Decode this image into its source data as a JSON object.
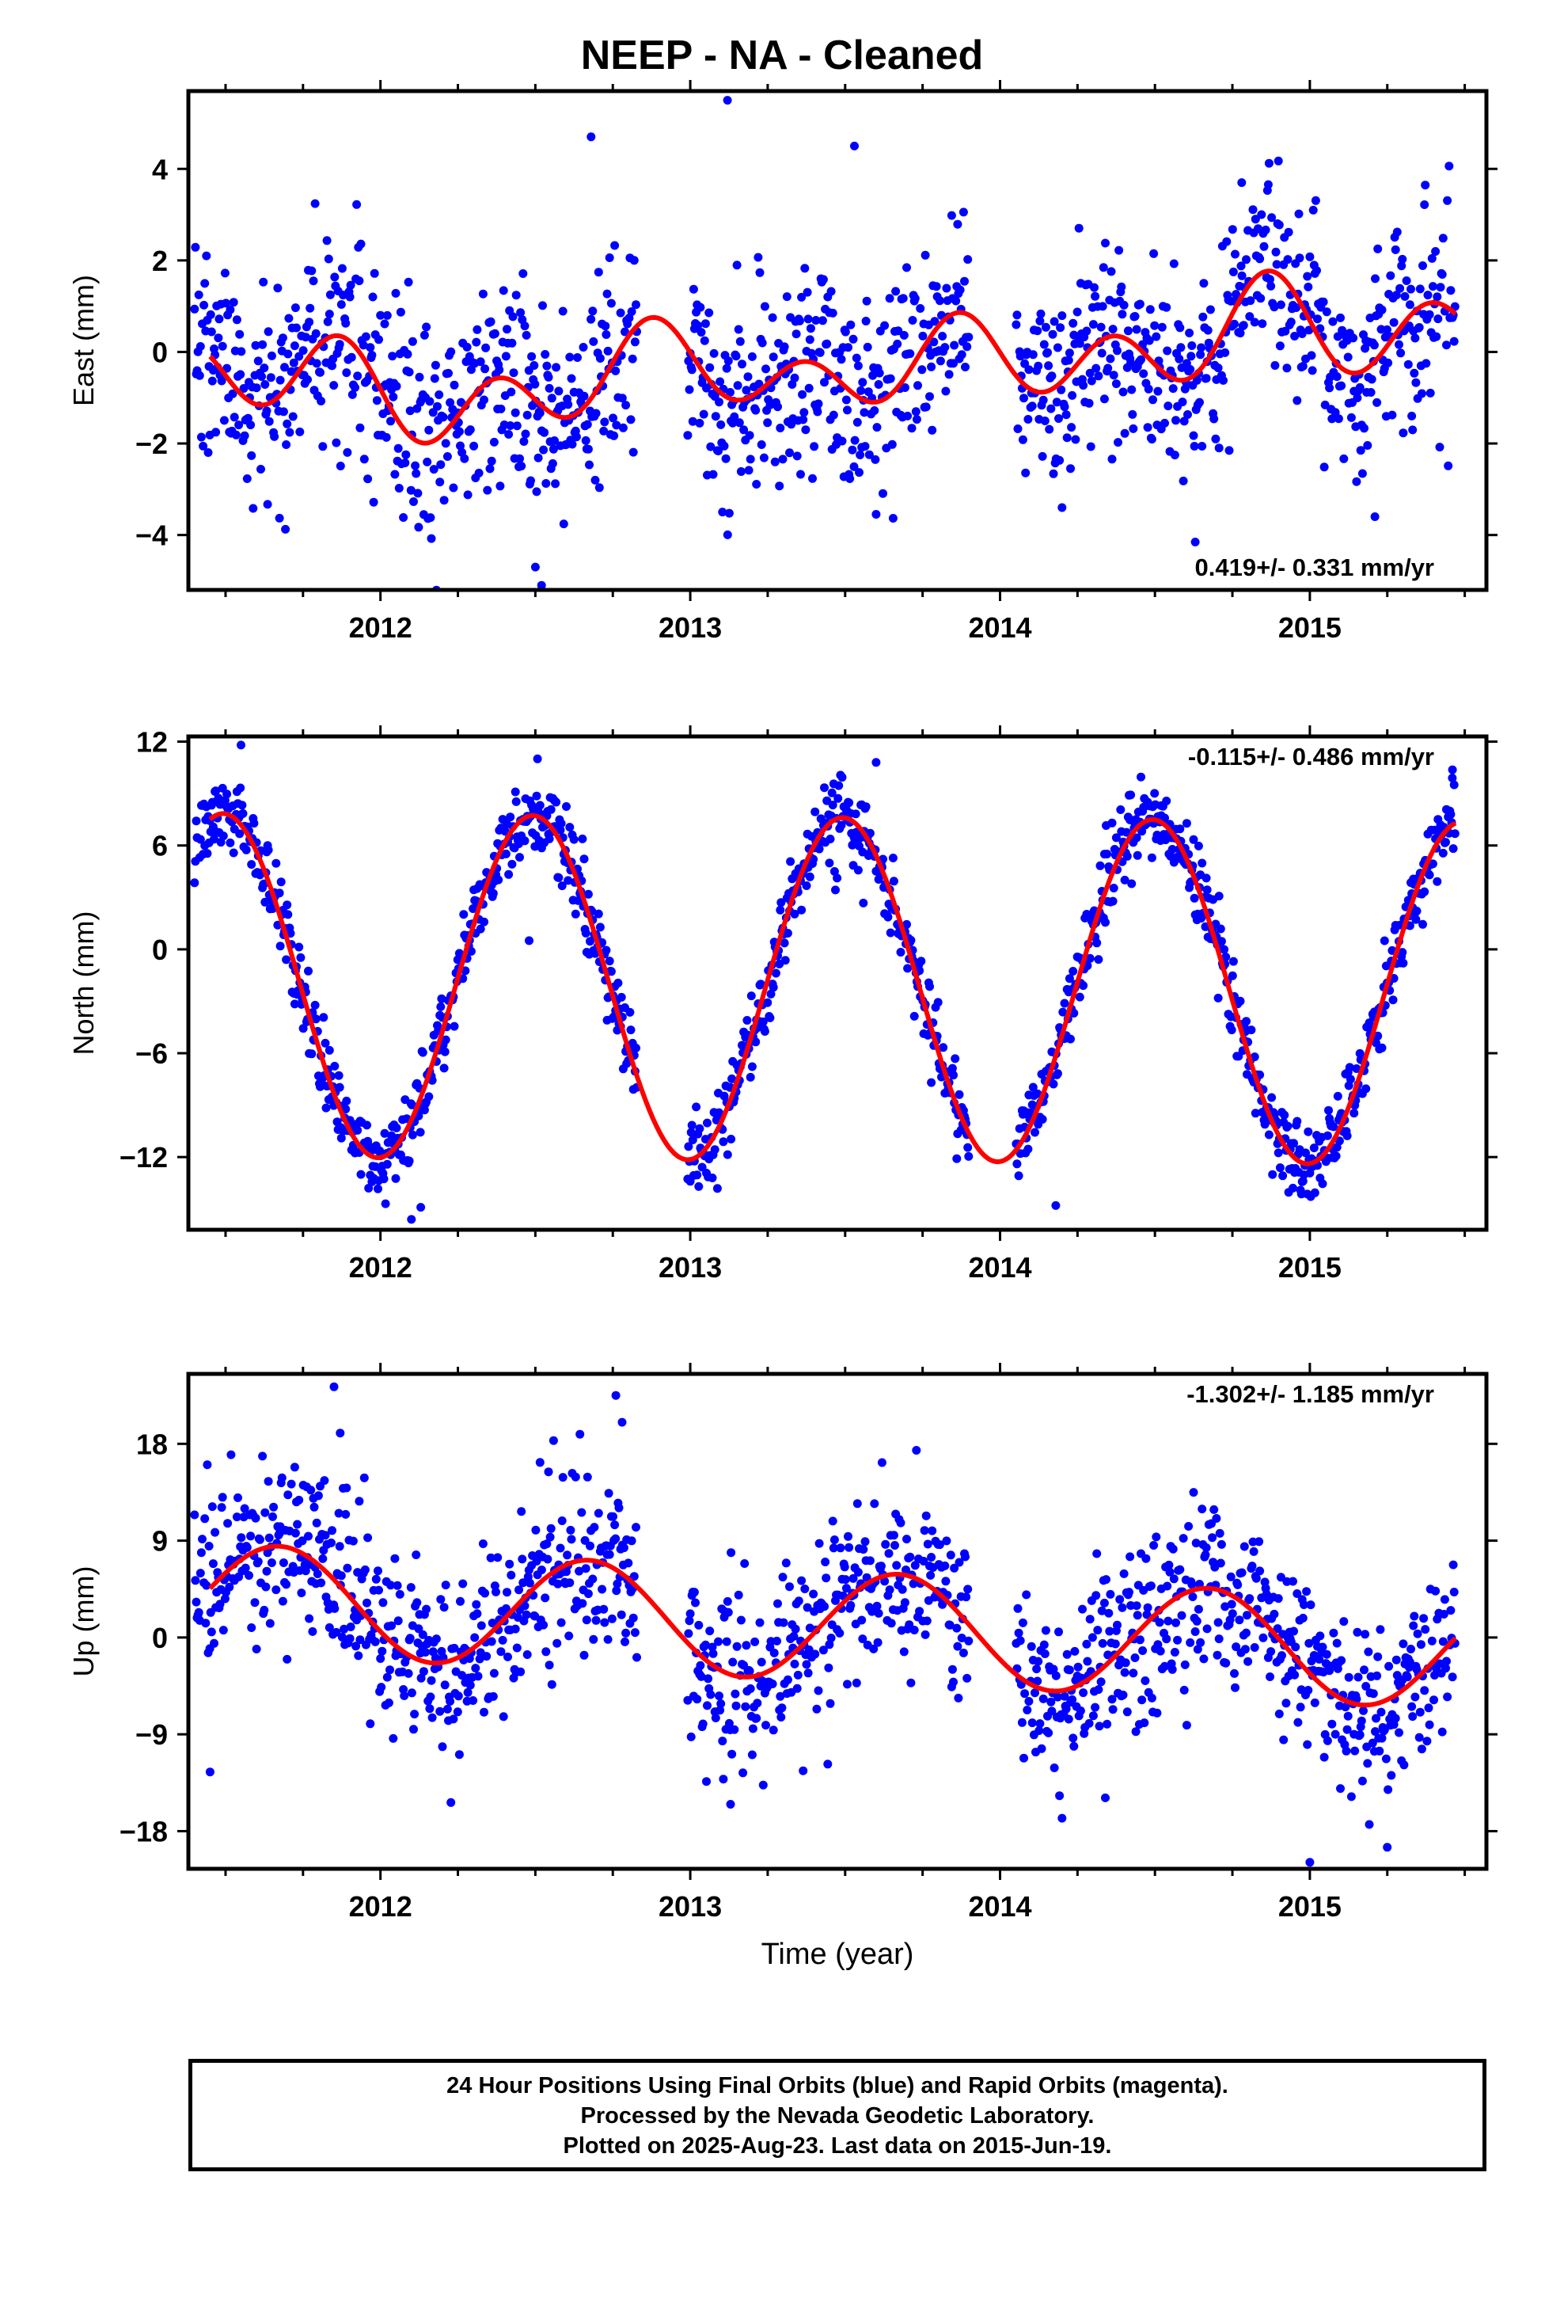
{
  "title": "NEEP  - NA - Cleaned",
  "footer": {
    "line1": "24 Hour Positions Using Final Orbits (blue) and Rapid Orbits (magenta).",
    "line2": "Processed by the Nevada Geodetic Laboratory.",
    "line3": "Plotted on 2025-Aug-23. Last data on 2015-Jun-19."
  },
  "colors": {
    "data_points": "#0000ff",
    "fit_curve": "#ff0000",
    "axes": "#000000"
  },
  "chart_data": [
    {
      "type": "scatter",
      "ylabel": "East (mm)",
      "xlabel": "",
      "xlim": [
        2011.38,
        2015.57
      ],
      "ylim": [
        -5.2,
        5.7
      ],
      "xticks": [
        2012,
        2013,
        2014,
        2015
      ],
      "xtick_labels": [
        "2012",
        "2013",
        "2014",
        "2015"
      ],
      "yticks": [
        -4,
        -2,
        0,
        2,
        4
      ],
      "ytick_labels": [
        "−4",
        "−2",
        "0",
        "2",
        "4"
      ],
      "rate_label": "0.419+/- 0.331 mm/yr",
      "rate_position": "bottom-right",
      "gaps": [
        [
          2012.83,
          2012.99
        ],
        [
          2013.9,
          2014.05
        ]
      ],
      "model": {
        "trend": 0.419,
        "t0": 2013.5,
        "offset": 0.0,
        "annual": [
          -0.1,
          0.0
        ],
        "semiannual": [
          -0.05,
          -0.8
        ],
        "bumps": [
          [
            2011.85,
            0.5,
            0.45
          ],
          [
            2012.3,
            0.3,
            -1.2
          ],
          [
            2013.1,
            0.3,
            0.6
          ],
          [
            2013.35,
            0.25,
            -1.3
          ],
          [
            2014.4,
            0.25,
            -0.9
          ],
          [
            2014.85,
            0.2,
            0.5
          ],
          [
            2015.3,
            0.2,
            -0.7
          ]
        ]
      },
      "noise_sd": 1.15,
      "outliers": [
        [
          2013.12,
          5.5
        ],
        [
          2012.68,
          4.7
        ],
        [
          2012.52,
          -5.1
        ],
        [
          2012.5,
          -4.7
        ],
        [
          2013.53,
          4.5
        ],
        [
          2014.2,
          -3.4
        ],
        [
          2014.78,
          3.7
        ],
        [
          2015.21,
          -3.6
        ]
      ]
    },
    {
      "type": "scatter",
      "ylabel": "North (mm)",
      "xlabel": "",
      "xlim": [
        2011.38,
        2015.57
      ],
      "ylim": [
        -16.2,
        12.3
      ],
      "xticks": [
        2012,
        2013,
        2014,
        2015
      ],
      "xtick_labels": [
        "2012",
        "2013",
        "2014",
        "2015"
      ],
      "yticks": [
        -12,
        -6,
        0,
        6,
        12
      ],
      "ytick_labels": [
        "−12",
        "−6",
        "0",
        "6",
        "12"
      ],
      "rate_label": "-0.115+/- 0.486 mm/yr",
      "rate_position": "top-right",
      "gaps": [
        [
          2012.83,
          2012.99
        ],
        [
          2013.9,
          2014.05
        ]
      ],
      "model": {
        "trend": -0.115,
        "t0": 2013.5,
        "offset": -2.3,
        "annual": [
          -9.9,
          0.5
        ],
        "semiannual": [
          0.0,
          0.0
        ],
        "bumps": []
      },
      "noise_sd": 1.2,
      "outliers": [
        [
          2011.55,
          11.8
        ],
        [
          2012.1,
          -15.6
        ],
        [
          2012.13,
          -14.9
        ],
        [
          2012.48,
          0.5
        ],
        [
          2013.6,
          10.8
        ],
        [
          2014.18,
          -14.8
        ],
        [
          2014.52,
          8.3
        ],
        [
          2015.46,
          9.9
        ]
      ]
    },
    {
      "type": "scatter",
      "ylabel": "Up (mm)",
      "xlabel": "Time (year)",
      "xlim": [
        2011.38,
        2015.57
      ],
      "ylim": [
        -21.5,
        24.5
      ],
      "xticks": [
        2012,
        2013,
        2014,
        2015
      ],
      "xtick_labels": [
        "2012",
        "2013",
        "2014",
        "2015"
      ],
      "yticks": [
        -18,
        -9,
        0,
        9,
        18
      ],
      "ytick_labels": [
        "−18",
        "−9",
        "0",
        "9",
        "18"
      ],
      "rate_label": "-1.302+/- 1.185 mm/yr",
      "rate_position": "top-right",
      "gaps": [
        [
          2012.83,
          2012.99
        ],
        [
          2013.9,
          2014.05
        ]
      ],
      "model": {
        "trend": -1.302,
        "t0": 2013.5,
        "offset": 1.0,
        "annual": [
          -2.4,
          -4.5
        ],
        "semiannual": [
          0.0,
          0.0
        ],
        "bumps": []
      },
      "noise_sd": 4.2,
      "outliers": [
        [
          2011.85,
          23.3
        ],
        [
          2011.87,
          19.0
        ],
        [
          2012.76,
          22.5
        ],
        [
          2012.78,
          20.0
        ],
        [
          2013.13,
          -15.5
        ],
        [
          2013.73,
          17.4
        ],
        [
          2015.0,
          -20.9
        ],
        [
          2015.25,
          -19.5
        ],
        [
          2011.45,
          -12.5
        ]
      ]
    }
  ]
}
